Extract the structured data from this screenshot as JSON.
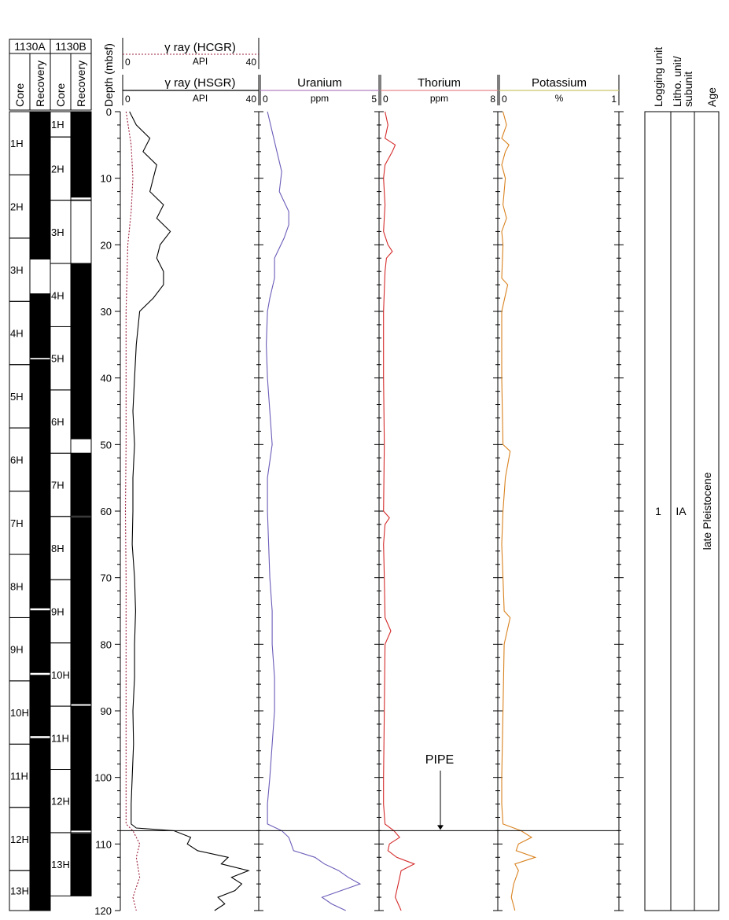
{
  "cores": {
    "holeA_label": "1130A",
    "holeB_label": "1130B",
    "core_header": "Core",
    "recovery_header": "Recovery",
    "holeA": [
      {
        "name": "1H",
        "top": 0,
        "bottom": 9.5,
        "recovery": [
          [
            0,
            9.5
          ]
        ]
      },
      {
        "name": "2H",
        "top": 9.5,
        "bottom": 19.0,
        "recovery": [
          [
            9.5,
            19.0
          ]
        ]
      },
      {
        "name": "3H",
        "top": 19.0,
        "bottom": 28.5,
        "recovery": [
          [
            19.0,
            22.2
          ],
          [
            27.3,
            28.5
          ]
        ]
      },
      {
        "name": "4H",
        "top": 28.5,
        "bottom": 38.0,
        "recovery": [
          [
            28.5,
            37.0
          ],
          [
            37.2,
            38.0
          ]
        ]
      },
      {
        "name": "5H",
        "top": 38.0,
        "bottom": 47.5,
        "recovery": [
          [
            38.0,
            47.5
          ]
        ]
      },
      {
        "name": "6H",
        "top": 47.5,
        "bottom": 57.0,
        "recovery": [
          [
            47.5,
            57.0
          ]
        ]
      },
      {
        "name": "7H",
        "top": 57.0,
        "bottom": 66.5,
        "recovery": [
          [
            57.0,
            66.5
          ]
        ]
      },
      {
        "name": "8H",
        "top": 66.5,
        "bottom": 76.0,
        "recovery": [
          [
            66.5,
            74.6
          ],
          [
            74.9,
            76.0
          ]
        ]
      },
      {
        "name": "9H",
        "top": 76.0,
        "bottom": 85.5,
        "recovery": [
          [
            76.0,
            84.3
          ],
          [
            84.6,
            85.5
          ]
        ]
      },
      {
        "name": "10H",
        "top": 85.5,
        "bottom": 95.0,
        "recovery": [
          [
            85.5,
            93.8
          ],
          [
            94.1,
            95.0
          ]
        ]
      },
      {
        "name": "11H",
        "top": 95.0,
        "bottom": 104.5,
        "recovery": [
          [
            95.0,
            104.5
          ]
        ]
      },
      {
        "name": "12H",
        "top": 104.5,
        "bottom": 114.0,
        "recovery": [
          [
            104.5,
            114.0
          ]
        ]
      },
      {
        "name": "13H",
        "top": 114.0,
        "bottom": 120.0,
        "recovery": [
          [
            114.0,
            120.0
          ]
        ]
      }
    ],
    "holeB": [
      {
        "name": "1H",
        "top": 0,
        "bottom": 3.8,
        "recovery": [
          [
            0,
            3.8
          ]
        ]
      },
      {
        "name": "2H",
        "top": 3.8,
        "bottom": 13.3,
        "recovery": [
          [
            3.8,
            12.9
          ],
          [
            13.2,
            13.3
          ]
        ]
      },
      {
        "name": "3H",
        "top": 13.3,
        "bottom": 22.8,
        "recovery": [
          [
            13.3,
            13.4
          ]
        ]
      },
      {
        "name": "4H",
        "top": 22.8,
        "bottom": 32.3,
        "recovery": [
          [
            22.8,
            32.3
          ]
        ]
      },
      {
        "name": "5H",
        "top": 32.3,
        "bottom": 41.8,
        "recovery": [
          [
            32.3,
            41.8
          ]
        ]
      },
      {
        "name": "6H",
        "top": 41.8,
        "bottom": 51.3,
        "recovery": [
          [
            41.8,
            49.2
          ],
          [
            51.3,
            51.3
          ]
        ]
      },
      {
        "name": "7H",
        "top": 51.3,
        "bottom": 60.8,
        "recovery": [
          [
            51.3,
            60.7
          ],
          [
            60.9,
            60.8
          ]
        ]
      },
      {
        "name": "8H",
        "top": 60.8,
        "bottom": 70.3,
        "recovery": [
          [
            60.9,
            70.3
          ]
        ]
      },
      {
        "name": "9H",
        "top": 70.3,
        "bottom": 79.8,
        "recovery": [
          [
            70.3,
            79.8
          ]
        ]
      },
      {
        "name": "10H",
        "top": 79.8,
        "bottom": 89.3,
        "recovery": [
          [
            79.8,
            89.0
          ],
          [
            89.3,
            89.3
          ]
        ]
      },
      {
        "name": "11H",
        "top": 89.3,
        "bottom": 98.8,
        "recovery": [
          [
            89.3,
            98.8
          ]
        ]
      },
      {
        "name": "12H",
        "top": 98.8,
        "bottom": 108.3,
        "recovery": [
          [
            98.8,
            108.0
          ],
          [
            108.4,
            108.3
          ]
        ]
      },
      {
        "name": "13H",
        "top": 108.3,
        "bottom": 117.8,
        "recovery": [
          [
            108.4,
            117.8
          ]
        ]
      }
    ]
  },
  "chart_data": {
    "type": "line",
    "depth_axis": {
      "label": "Depth (mbsf)",
      "range": [
        0,
        120
      ],
      "ticks": [
        0,
        10,
        20,
        30,
        40,
        50,
        60,
        70,
        80,
        90,
        100,
        110,
        120
      ],
      "inverted": true
    },
    "tracks": [
      {
        "id": "gamma",
        "header_top": {
          "title": "γ ray (HCGR)",
          "unit": "API",
          "min": "0",
          "max": "40"
        },
        "header": {
          "title": "γ ray (HSGR)",
          "unit": "API",
          "min": "0",
          "max": "40"
        },
        "range": [
          0,
          40
        ],
        "series": [
          {
            "name": "HSGR",
            "color": "#000000",
            "dashed": false,
            "depth": [
              0,
              2,
              4,
              6,
              8,
              10,
              12,
              14,
              16,
              18,
              20,
              22,
              24,
              26,
              28,
              30,
              35,
              40,
              45,
              50,
              55,
              60,
              65,
              70,
              75,
              80,
              85,
              90,
              95,
              100,
              104,
              107,
              107.6,
              108,
              109,
              110,
              111,
              112,
              113,
              114,
              115,
              116,
              117,
              118,
              119,
              120
            ],
            "value": [
              2,
              4,
              8,
              6,
              10,
              9,
              8,
              12,
              10,
              14,
              11,
              10,
              12,
              12,
              9,
              5,
              4,
              3.5,
              3,
              3.5,
              3,
              3,
              2.8,
              3.5,
              3.8,
              3.5,
              3.5,
              3,
              3.2,
              2.8,
              2.5,
              2.5,
              4,
              15,
              20,
              19,
              22,
              31,
              29,
              37,
              32,
              35,
              33,
              28,
              30,
              27
            ]
          },
          {
            "name": "HCGR",
            "color": "#9b1f3a",
            "dashed": true,
            "depth": [
              0,
              5,
              10,
              15,
              20,
              30,
              40,
              50,
              60,
              70,
              80,
              90,
              100,
              107,
              108,
              110,
              112,
              115,
              118,
              120
            ],
            "value": [
              1,
              2.5,
              3,
              2.5,
              1.5,
              1,
              1,
              1,
              0.8,
              1,
              1,
              1,
              1,
              1,
              3,
              5,
              4,
              5,
              3,
              4
            ]
          }
        ]
      },
      {
        "id": "uranium",
        "header": {
          "title": "Uranium",
          "unit": "ppm",
          "min": "0",
          "max": "5"
        },
        "range": [
          0,
          5
        ],
        "series": [
          {
            "name": "Uranium",
            "color": "#6a5cb8",
            "dashed": false,
            "depth": [
              0,
              3,
              6,
              9,
              12,
              15,
              17,
              19,
              22,
              25,
              28,
              30,
              35,
              40,
              45,
              50,
              55,
              60,
              65,
              70,
              75,
              80,
              85,
              90,
              95,
              100,
              104,
              107,
              108,
              109,
              110,
              111,
              112,
              113,
              114,
              115,
              116,
              117,
              118,
              119,
              120
            ],
            "value": [
              0.3,
              0.5,
              0.7,
              0.9,
              0.8,
              1.2,
              1.2,
              1.0,
              0.6,
              0.6,
              0.4,
              0.3,
              0.25,
              0.3,
              0.4,
              0.5,
              0.3,
              0.3,
              0.35,
              0.4,
              0.5,
              0.5,
              0.6,
              0.6,
              0.5,
              0.4,
              0.3,
              0.3,
              0.9,
              1.2,
              1.3,
              1.4,
              2.3,
              2.7,
              3.3,
              3.7,
              4.2,
              3.4,
              2.6,
              3.0,
              3.6
            ]
          }
        ]
      },
      {
        "id": "thorium",
        "header": {
          "title": "Thorium",
          "unit": "ppm",
          "min": "0",
          "max": "8"
        },
        "range": [
          0,
          8
        ],
        "series": [
          {
            "name": "Thorium",
            "color": "#d42a2a",
            "dashed": false,
            "depth": [
              0,
              2,
              4,
              5,
              6,
              8,
              10,
              14,
              18,
              20,
              21,
              22,
              24,
              30,
              40,
              50,
              60,
              61,
              62,
              65,
              70,
              76,
              78,
              80,
              90,
              100,
              104,
              107,
              108,
              109,
              110,
              111,
              112,
              113,
              114,
              116,
              118,
              120
            ],
            "value": [
              0.3,
              0.5,
              0.3,
              1.0,
              0.8,
              0.3,
              0.2,
              0.3,
              0.2,
              0.5,
              0.8,
              0.4,
              0.3,
              0.2,
              0.2,
              0.25,
              0.2,
              0.6,
              0.3,
              0.2,
              0.25,
              0.3,
              0.7,
              0.3,
              0.25,
              0.2,
              0.2,
              0.3,
              0.9,
              1.3,
              0.6,
              0.5,
              1.1,
              2.3,
              1.4,
              1.2,
              1.0,
              1.4
            ]
          }
        ]
      },
      {
        "id": "potassium",
        "header": {
          "title": "Potassium",
          "unit": "%",
          "min": "0",
          "max": "1"
        },
        "range": [
          0,
          1
        ],
        "series": [
          {
            "name": "Potassium",
            "color": "#d9821f",
            "dashed": false,
            "depth": [
              0,
              2,
              4,
              5,
              6,
              8,
              10,
              14,
              16,
              18,
              20,
              25,
              26,
              30,
              40,
              50,
              51,
              55,
              60,
              65,
              70,
              75,
              76,
              80,
              90,
              100,
              104,
              107,
              108,
              109,
              110,
              111,
              112,
              113,
              114,
              116,
              118,
              120
            ],
            "value": [
              0.03,
              0.06,
              0.02,
              0.08,
              0.05,
              0.02,
              0.05,
              0.03,
              0.06,
              0.02,
              0.03,
              0.02,
              0.07,
              0.02,
              0.02,
              0.03,
              0.09,
              0.05,
              0.03,
              0.02,
              0.03,
              0.04,
              0.09,
              0.04,
              0.03,
              0.02,
              0.02,
              0.03,
              0.18,
              0.27,
              0.16,
              0.14,
              0.3,
              0.13,
              0.16,
              0.12,
              0.1,
              0.13
            ]
          }
        ]
      }
    ],
    "marker": {
      "label": "PIPE",
      "depth": 108
    }
  },
  "units": {
    "logging_header": "Logging unit",
    "litho_header_line1": "Litho. unit/",
    "litho_header_line2": "subunit",
    "age_header": "Age",
    "logging_value": "1",
    "litho_value": "IA",
    "age_value": "late Pleistocene"
  }
}
